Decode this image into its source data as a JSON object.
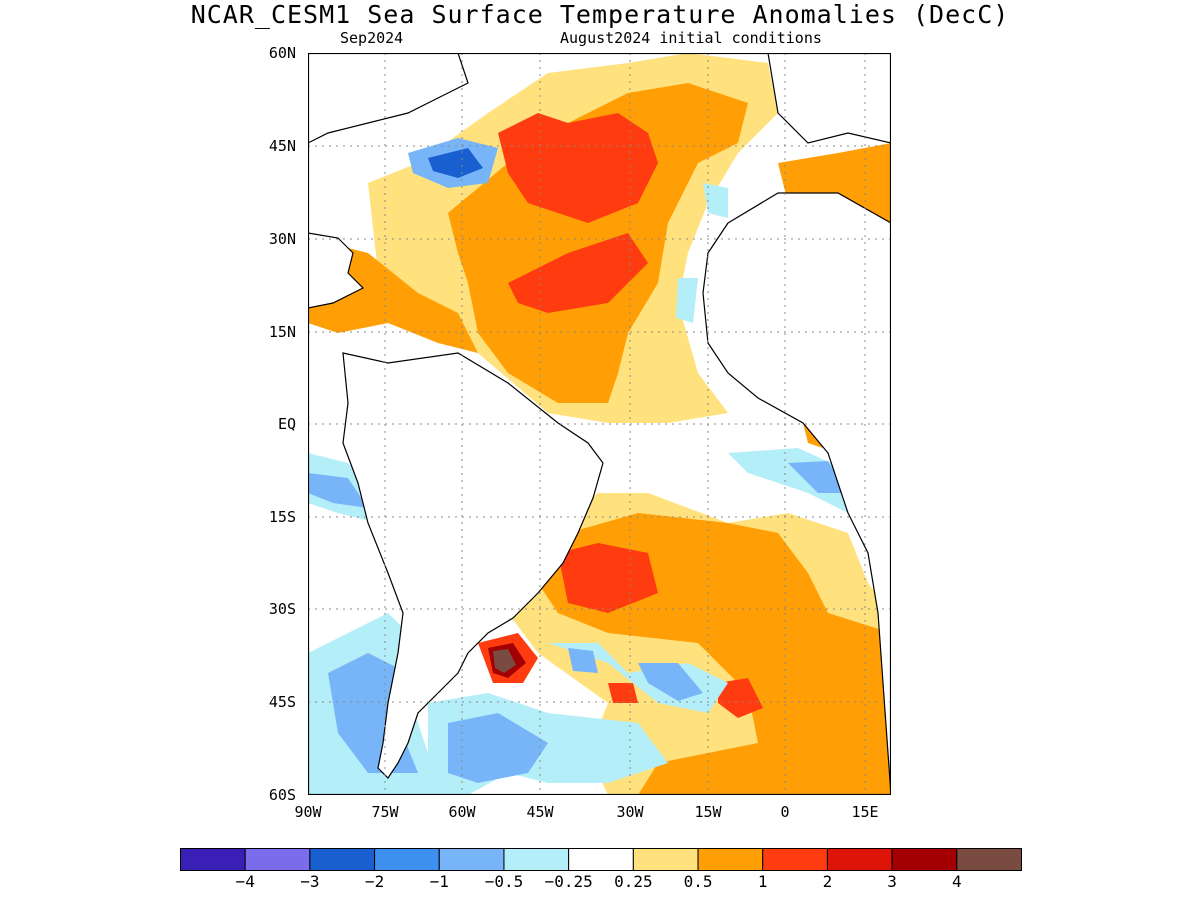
{
  "title": "NCAR_CESM1 Sea Surface Temperature Anomalies (DecC)",
  "subtitle_left": "Sep2024",
  "subtitle_right": "August2024 initial conditions",
  "y_tick_labels": [
    "60N",
    "45N",
    "30N",
    "15N",
    "EQ",
    "15S",
    "30S",
    "45S",
    "60S"
  ],
  "x_tick_labels": [
    "90W",
    "75W",
    "60W",
    "45W",
    "30W",
    "15W",
    "0",
    "15E"
  ],
  "colorbar": {
    "colors": [
      "#3a1fb6",
      "#7a6cea",
      "#1a5fd0",
      "#3d8ff0",
      "#77b5f8",
      "#b4eef8",
      "#ffffff",
      "#ffe27d",
      "#ff9e05",
      "#ff3c10",
      "#dc1508",
      "#a40004",
      "#7a4b40"
    ],
    "labels": [
      "−4",
      "−3",
      "−2",
      "−1",
      "−0.5",
      "−0.25",
      "0.25",
      "0.5",
      "1",
      "2",
      "3",
      "4"
    ]
  }
}
